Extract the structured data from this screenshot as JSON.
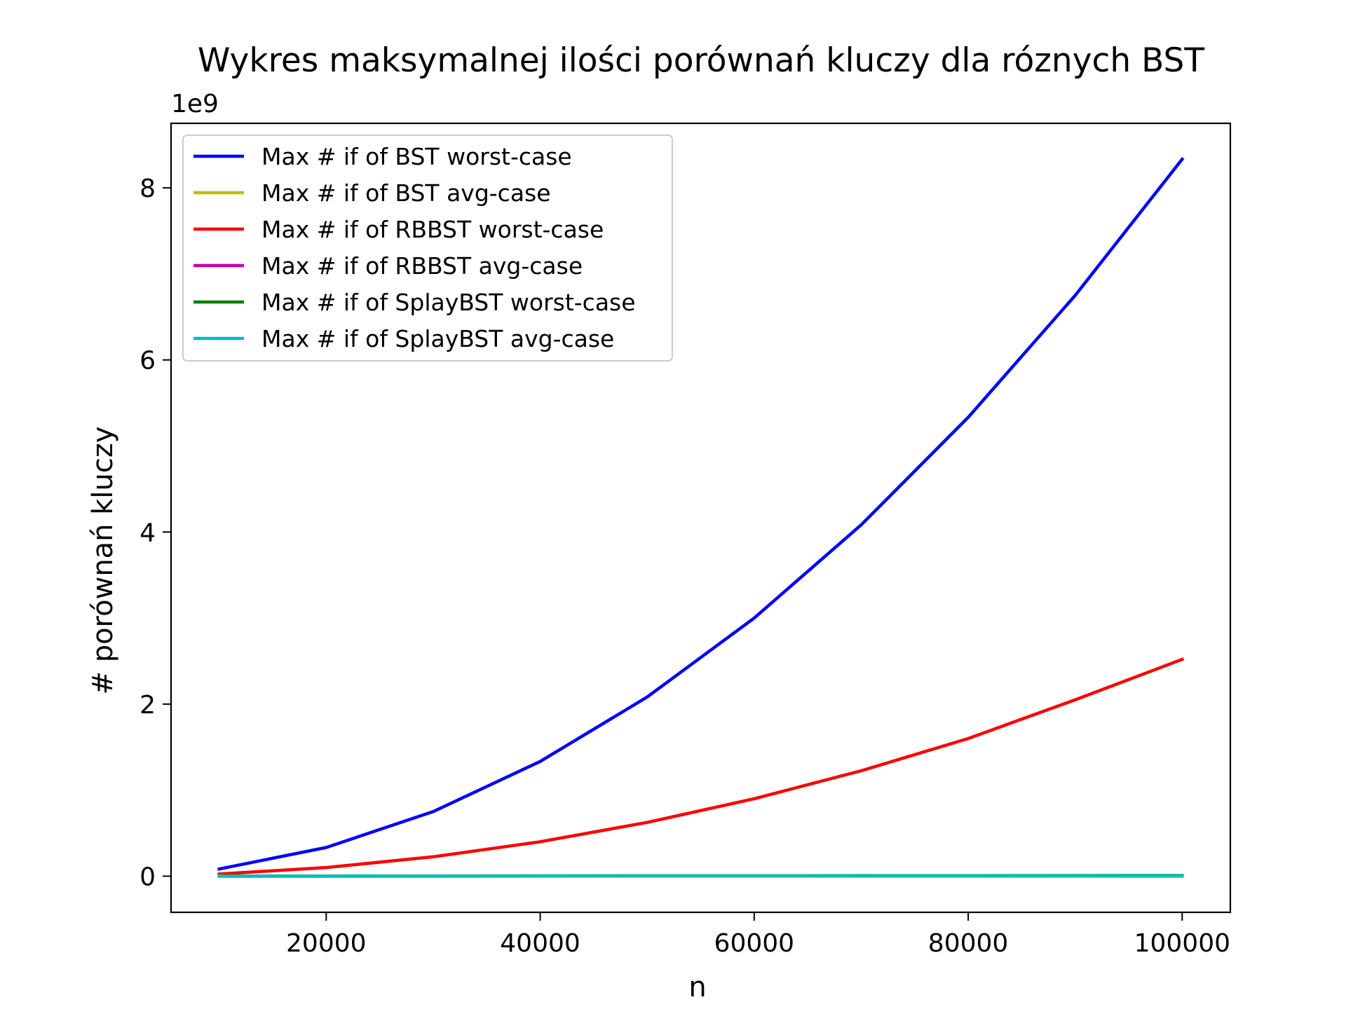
{
  "chart_data": {
    "type": "line",
    "title": "Wykres maksymalnej ilości porównań kluczy dla róznych BST",
    "xlabel": "n",
    "ylabel": "# porównań kluczy",
    "y_offset_text": "1e9",
    "y_scale_factor": 1000000000,
    "xlim": [
      5500,
      104500
    ],
    "ylim": [
      -420000000,
      8750000000
    ],
    "x_ticks": [
      20000,
      40000,
      60000,
      80000,
      100000
    ],
    "x_tick_labels": [
      "20000",
      "40000",
      "60000",
      "80000",
      "100000"
    ],
    "y_ticks": [
      0,
      2000000000,
      4000000000,
      6000000000,
      8000000000
    ],
    "y_tick_labels": [
      "0",
      "2",
      "4",
      "6",
      "8"
    ],
    "grid": false,
    "legend_position": "upper-left",
    "x": [
      10000,
      20000,
      30000,
      40000,
      50000,
      60000,
      70000,
      80000,
      90000,
      100000
    ],
    "series": [
      {
        "name": "Max # if of BST worst-case",
        "color": "#0000ff",
        "values": [
          83000000,
          333000000,
          750000000,
          1333000000,
          2083000000,
          3000000000,
          4083000000,
          5333000000,
          6750000000,
          8333000000
        ]
      },
      {
        "name": "Max # if of BST avg-case",
        "color": "#bfbf00",
        "values": [
          160000,
          350000,
          560000,
          760000,
          980000,
          1200000,
          1420000,
          1640000,
          1870000,
          2100000
        ]
      },
      {
        "name": "Max # if of RBBST worst-case",
        "color": "#ff0000",
        "values": [
          25000000,
          100000000,
          225000000,
          400000000,
          625000000,
          900000000,
          1225000000,
          1600000000,
          2050000000,
          2520000000
        ]
      },
      {
        "name": "Max # if of RBBST avg-case",
        "color": "#bf00bf",
        "values": [
          140000,
          300000,
          470000,
          640000,
          820000,
          1000000,
          1180000,
          1360000,
          1550000,
          1740000
        ]
      },
      {
        "name": "Max # if of SplayBST worst-case",
        "color": "#008000",
        "values": [
          700000,
          1500000,
          2300000,
          3100000,
          3900000,
          4700000,
          5500000,
          6300000,
          7100000,
          7900000
        ]
      },
      {
        "name": "Max # if of SplayBST avg-case",
        "color": "#00bfbf",
        "values": [
          250000,
          540000,
          840000,
          1150000,
          1460000,
          1780000,
          2100000,
          2420000,
          2750000,
          3080000
        ]
      }
    ]
  }
}
